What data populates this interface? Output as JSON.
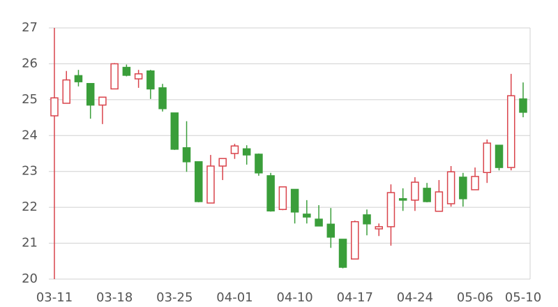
{
  "chart_data": {
    "type": "candlestick",
    "categories": [
      "03-11",
      null,
      null,
      null,
      null,
      "03-18",
      null,
      null,
      null,
      null,
      "03-25",
      null,
      null,
      null,
      null,
      "04-01",
      null,
      null,
      null,
      null,
      "04-10",
      null,
      null,
      null,
      null,
      "04-17",
      null,
      null,
      null,
      null,
      "04-24",
      null,
      null,
      null,
      null,
      "05-06",
      null,
      null,
      null,
      "05-10"
    ],
    "open": [
      24.55,
      24.9,
      25.67,
      25.45,
      24.85,
      25.3,
      25.9,
      25.58,
      25.8,
      25.33,
      24.63,
      23.66,
      23.27,
      22.12,
      23.15,
      23.5,
      23.63,
      23.48,
      22.88,
      21.94,
      22.5,
      21.81,
      21.67,
      21.53,
      21.11,
      20.56,
      21.79,
      21.4,
      21.46,
      22.24,
      22.2,
      22.53,
      21.89,
      22.1,
      22.84,
      22.49,
      22.97,
      23.73,
      23.11,
      25.02
    ],
    "close": [
      25.05,
      25.55,
      25.5,
      24.85,
      25.07,
      26.0,
      25.68,
      25.72,
      25.3,
      24.75,
      23.62,
      23.27,
      22.16,
      23.15,
      23.36,
      23.71,
      23.46,
      22.96,
      21.9,
      22.57,
      21.87,
      21.73,
      21.48,
      21.17,
      20.33,
      21.6,
      21.54,
      21.46,
      22.41,
      22.2,
      22.7,
      22.16,
      22.43,
      22.99,
      22.24,
      22.86,
      23.79,
      23.11,
      25.11,
      24.65
    ],
    "low": [
      20,
      24.9,
      25.37,
      24.47,
      24.32,
      25.3,
      25.65,
      25.33,
      25.02,
      24.67,
      23.6,
      22.99,
      22.14,
      22.12,
      22.76,
      23.35,
      23.19,
      22.88,
      21.88,
      21.92,
      21.55,
      21.55,
      21.48,
      20.87,
      20.3,
      20.56,
      21.22,
      21.2,
      20.93,
      21.9,
      21.9,
      22.14,
      21.89,
      22.02,
      22.02,
      22.49,
      22.68,
      23.03,
      23.03,
      24.51
    ],
    "high": [
      27,
      25.8,
      25.83,
      25.45,
      25.07,
      26.02,
      25.98,
      25.83,
      25.83,
      25.44,
      24.63,
      24.4,
      23.27,
      23.46,
      23.36,
      23.77,
      23.73,
      23.5,
      22.96,
      22.57,
      22.5,
      22.2,
      22.06,
      21.98,
      21.11,
      21.63,
      21.94,
      21.55,
      22.64,
      22.53,
      22.84,
      22.68,
      22.76,
      23.15,
      22.96,
      23.11,
      23.89,
      23.73,
      25.72,
      25.48
    ],
    "up_color": "#d9434b",
    "down_color": "#3a9e3a",
    "ylim": [
      20,
      27
    ],
    "yticks": [
      20,
      21,
      22,
      23,
      24,
      25,
      26,
      27
    ],
    "grid": true
  }
}
